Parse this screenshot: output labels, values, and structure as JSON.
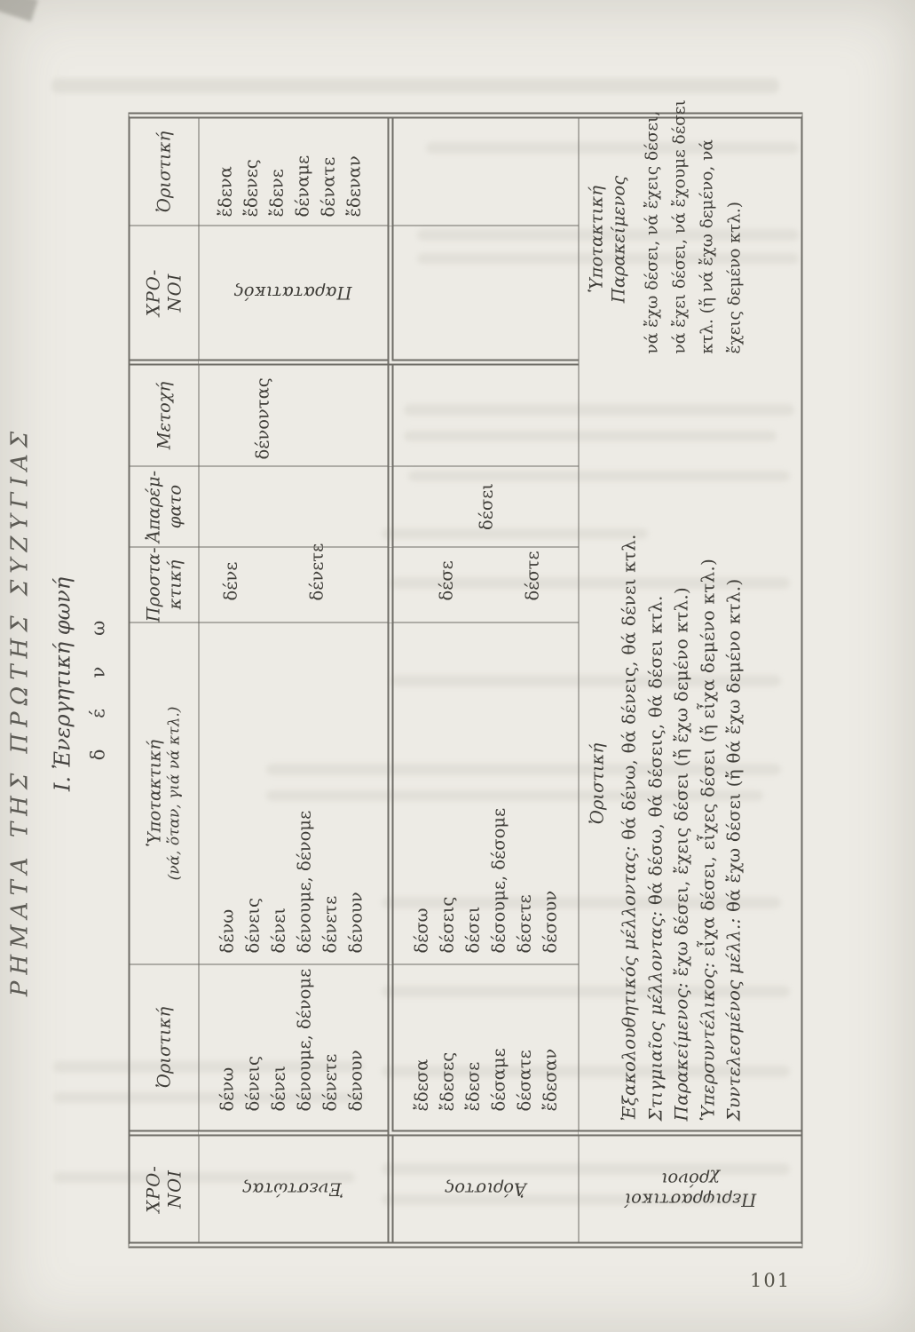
{
  "page": {
    "number": "101"
  },
  "heading": {
    "title": "ΡΗΜΑΤΑ ΤΗΣ ΠΡΩΤΗΣ ΣΥΖΥΓΙΑΣ",
    "subtitle": "Ι. Ἐνεργητική φωνή",
    "verb": "δ έ ν ω"
  },
  "colors": {
    "paper": "#edebe5",
    "ink": "#3f3d38",
    "line": "#6e6c66"
  },
  "table": {
    "headers": {
      "tenses": [
        "ΧΡΟ-",
        "ΝΟΙ"
      ],
      "indicative": "Ὀριστική",
      "subjunctive": [
        "Ὑποτακτική",
        "(νά, ὅταν, γιά νά κτλ.)"
      ],
      "imperative": [
        "Προστα-",
        "κτική"
      ],
      "infinitive": [
        "Ἀπαρέμ-",
        "φατο"
      ],
      "participle": "Μετοχή",
      "tenses2": [
        "ΧΡΟ-",
        "ΝΟΙ"
      ],
      "indicative2": "Ὀριστική"
    },
    "rows": {
      "present": {
        "label": "Ἐνεστώτας",
        "indicative": [
          "δένω",
          "δένεις",
          "δένει",
          "δένουμε, δένομε",
          "δένετε",
          "δένουν"
        ],
        "subjunctive": [
          "δένω",
          "δένεις",
          "δένει",
          "δένουμε, δένομε",
          "δένετε",
          "δένουν"
        ],
        "imperative": [
          "δένε",
          "δένετε"
        ],
        "infinitive": "",
        "participle": "δένοντας",
        "tense2_label": "Παρατατικός",
        "indicative2": [
          "ἔδενα",
          "ἔδενες",
          "ἔδενε",
          "δέναμε",
          "δένατε",
          "ἔδεναν"
        ]
      },
      "aorist": {
        "label": "Ἀόριστος",
        "indicative": [
          "ἔδεσα",
          "ἔδεσες",
          "ἔδεσε",
          "δέσαμε",
          "δέσατε",
          "ἔδεσαν"
        ],
        "subjunctive": [
          "δέσω",
          "δέσεις",
          "δέσει",
          "δέσουμε, δέσομε",
          "δέσετε",
          "δέσουν"
        ],
        "imperative": [
          "δέσε",
          "δέστε"
        ],
        "infinitive": "δέσει",
        "participle": ""
      },
      "periphrastic": {
        "label": [
          "Περιφραστικοί",
          "χρόνοι"
        ],
        "indicative_header": "Ὀριστική",
        "indicative_lines": [
          [
            "Ἐξακολουθητικός μέλλοντας:",
            "θά δένω, θά δένεις, θά δένει κτλ."
          ],
          [
            "Στιγμιαῖος μέλλοντας:",
            "θά δέσω, θά δέσεις, θά δέσει κτλ."
          ],
          [
            "Παρακείμενος:",
            "ἔχω δέσει, ἔχεις δέσει (ἤ ἔχω δεμένο κτλ.)"
          ],
          [
            "Ὑπερσυντέλικος:",
            "εἶχα δέσει, εἶχες δέσει (ἤ εἶχα δεμένο κτλ.)"
          ],
          [
            "Συντελεσμένος μέλλ.:",
            "θά ἔχω δέσει (ἤ θά ἔχω δεμένο κτλ.)"
          ]
        ],
        "subjunctive_header": [
          "Ὑποτακτική",
          "Παρακείμενος"
        ],
        "subjunctive_lines": [
          "νά ἔχω δέσει, νά ἔχεις δέσει,",
          "νά ἔχει δέσει, νά ἔχουμε δέσει",
          "κτλ. (ἤ νά ἔχω δεμένο, νά",
          "ἔχεις δεμένο κτλ.)"
        ]
      }
    }
  }
}
